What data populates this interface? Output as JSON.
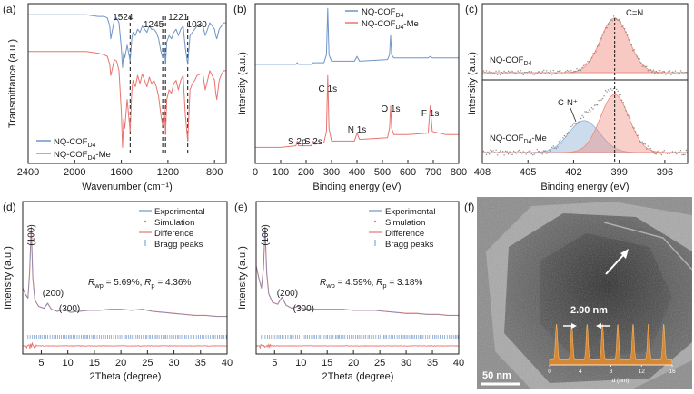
{
  "panels": {
    "a": {
      "label": "(a)",
      "chart_data": {
        "type": "line",
        "xlabel": "Wavenumber (cm⁻¹)",
        "ylabel": "Transmittance (a.u.)",
        "xlim": [
          2400,
          700
        ],
        "x_ticks": [
          "2400",
          "2000",
          "1600",
          "1200",
          "800"
        ],
        "peak_labels": [
          "1524",
          "1245",
          "1221",
          "1030"
        ],
        "peak_positions": [
          1524,
          1245,
          1221,
          1030
        ],
        "legend": [
          {
            "base": "NQ-COF",
            "sub": "D4",
            "suffix": "",
            "color": "#6f95c6"
          },
          {
            "base": "NQ-COF",
            "sub": "D4",
            "suffix": "-Me",
            "color": "#e8746f"
          }
        ],
        "series": [
          {
            "color": "#6f95c6",
            "x": [
              2400,
              2200,
              2000,
              1900,
              1800,
              1750,
              1720,
              1700,
              1690,
              1660,
              1640,
              1620,
              1600,
              1590,
              1580,
              1570,
              1550,
              1524,
              1510,
              1500,
              1480,
              1460,
              1440,
              1420,
              1400,
              1380,
              1360,
              1340,
              1320,
              1300,
              1280,
              1260,
              1245,
              1230,
              1221,
              1210,
              1190,
              1170,
              1150,
              1130,
              1110,
              1090,
              1070,
              1050,
              1030,
              1010,
              990,
              970,
              950,
              920,
              900,
              880,
              860,
              840,
              820,
              800,
              790,
              780,
              760,
              740,
              720,
              700
            ],
            "y": [
              0.93,
              0.93,
              0.93,
              0.93,
              0.92,
              0.92,
              0.91,
              0.86,
              0.78,
              0.9,
              0.91,
              0.88,
              0.72,
              0.6,
              0.7,
              0.66,
              0.74,
              0.64,
              0.78,
              0.82,
              0.8,
              0.84,
              0.82,
              0.86,
              0.84,
              0.82,
              0.86,
              0.84,
              0.84,
              0.82,
              0.78,
              0.7,
              0.66,
              0.72,
              0.62,
              0.76,
              0.8,
              0.78,
              0.82,
              0.84,
              0.8,
              0.84,
              0.86,
              0.72,
              0.62,
              0.8,
              0.82,
              0.84,
              0.86,
              0.86,
              0.86,
              0.8,
              0.84,
              0.88,
              0.86,
              0.84,
              0.8,
              0.78,
              0.84,
              0.86,
              0.88,
              0.88
            ]
          },
          {
            "color": "#e8746f",
            "x": [
              2400,
              2200,
              2000,
              1900,
              1800,
              1750,
              1720,
              1700,
              1690,
              1660,
              1640,
              1620,
              1600,
              1590,
              1580,
              1570,
              1550,
              1524,
              1510,
              1500,
              1480,
              1460,
              1440,
              1420,
              1400,
              1380,
              1360,
              1340,
              1320,
              1300,
              1280,
              1260,
              1245,
              1230,
              1221,
              1210,
              1190,
              1170,
              1150,
              1130,
              1110,
              1090,
              1070,
              1050,
              1030,
              1010,
              990,
              970,
              950,
              920,
              900,
              880,
              860,
              840,
              820,
              800,
              790,
              780,
              760,
              740,
              720,
              700
            ],
            "y": [
              0.7,
              0.7,
              0.7,
              0.7,
              0.69,
              0.68,
              0.67,
              0.62,
              0.55,
              0.65,
              0.64,
              0.58,
              0.32,
              0.1,
              0.28,
              0.22,
              0.4,
              0.2,
              0.45,
              0.52,
              0.48,
              0.55,
              0.5,
              0.56,
              0.52,
              0.48,
              0.54,
              0.5,
              0.52,
              0.48,
              0.42,
              0.3,
              0.24,
              0.34,
              0.18,
              0.4,
              0.46,
              0.44,
              0.5,
              0.52,
              0.46,
              0.52,
              0.55,
              0.3,
              0.14,
              0.46,
              0.5,
              0.52,
              0.55,
              0.56,
              0.56,
              0.46,
              0.52,
              0.58,
              0.55,
              0.52,
              0.44,
              0.4,
              0.52,
              0.56,
              0.58,
              0.58
            ]
          }
        ]
      }
    },
    "b": {
      "label": "(b)",
      "chart_data": {
        "type": "line",
        "xlabel": "Binding energy (eV)",
        "ylabel": "Intensity (a.u.)",
        "xlim": [
          0,
          800
        ],
        "x_ticks": [
          "0",
          "100",
          "200",
          "300",
          "400",
          "500",
          "600",
          "700",
          "800"
        ],
        "legend": [
          {
            "base": "NQ-COF",
            "sub": "D4",
            "suffix": "",
            "color": "#6f95c6"
          },
          {
            "base": "NQ-COF",
            "sub": "D4",
            "suffix": "-Me",
            "color": "#e8746f"
          }
        ],
        "peak_labels": [
          {
            "text": "S 2p",
            "x": 165
          },
          {
            "text": "S 2s",
            "x": 228
          },
          {
            "text": "C 1s",
            "x": 285
          },
          {
            "text": "N 1s",
            "x": 400
          },
          {
            "text": "O 1s",
            "x": 532
          },
          {
            "text": "F 1s",
            "x": 688
          }
        ],
        "series": [
          {
            "color": "#6f95c6",
            "x": [
              0,
              100,
              160,
              165,
              170,
              220,
              228,
              235,
              270,
              280,
              285,
              290,
              300,
              390,
              400,
              410,
              520,
              528,
              532,
              536,
              545,
              600,
              680,
              688,
              696,
              750,
              800
            ],
            "y": [
              0.62,
              0.62,
              0.62,
              0.63,
              0.62,
              0.62,
              0.63,
              0.63,
              0.63,
              0.68,
              0.97,
              0.68,
              0.64,
              0.64,
              0.67,
              0.64,
              0.65,
              0.68,
              0.8,
              0.68,
              0.66,
              0.66,
              0.66,
              0.67,
              0.66,
              0.66,
              0.66
            ]
          },
          {
            "color": "#e8746f",
            "x": [
              0,
              100,
              160,
              165,
              170,
              220,
              228,
              235,
              270,
              280,
              285,
              290,
              300,
              390,
              400,
              410,
              520,
              528,
              532,
              536,
              545,
              600,
              680,
              688,
              696,
              750,
              800
            ],
            "y": [
              0.1,
              0.1,
              0.11,
              0.14,
              0.11,
              0.11,
              0.14,
              0.12,
              0.13,
              0.2,
              0.55,
              0.22,
              0.14,
              0.14,
              0.19,
              0.15,
              0.16,
              0.22,
              0.36,
              0.22,
              0.18,
              0.18,
              0.19,
              0.36,
              0.2,
              0.18,
              0.18
            ]
          }
        ]
      }
    },
    "c": {
      "label": "(c)",
      "chart_data": {
        "type": "line",
        "xlabel": "Binding energy (eV)",
        "ylabel": "Intensity (a.u.)",
        "xlim": [
          408,
          394.5
        ],
        "x_ticks": [
          "408",
          "405",
          "402",
          "399",
          "396"
        ],
        "peak_position": 399.3,
        "upper": {
          "base": "NQ-COF",
          "sub": "D4",
          "suffix": "",
          "peak_label": "C=N"
        },
        "lower": {
          "base": "NQ-COF",
          "sub": "D4",
          "suffix": "-Me",
          "peak_label": "C-N⁺"
        },
        "components": [
          {
            "name": "C=N",
            "center": 399.3,
            "fwhm": 2.2,
            "color": "#f08878"
          },
          {
            "name": "C-N+",
            "center": 401.3,
            "fwhm": 2.4,
            "color": "#8fb2d8"
          }
        ]
      }
    },
    "d": {
      "label": "(d)",
      "chart_data": {
        "type": "line",
        "xlabel": "2Theta (degree)",
        "ylabel": "Intensity (a.u.)",
        "xlim": [
          1.5,
          40
        ],
        "x_ticks": [
          "5",
          "10",
          "15",
          "20",
          "25",
          "30",
          "35",
          "40"
        ],
        "legend": [
          "Experimental",
          "Simulation",
          "Difference",
          "Bragg peaks"
        ],
        "annotation": {
          "r1": "R",
          "r1sub": "wp",
          "r1val": " = 5.69%, ",
          "r2": "R",
          "r2sub": "p",
          "r2val": " = 4.36%"
        },
        "peak_labels": [
          {
            "text": "(100)",
            "x": 3.1
          },
          {
            "text": "(200)",
            "x": 6.2
          },
          {
            "text": "(300)",
            "x": 9.3
          }
        ],
        "series": [
          {
            "color": "#e8746f",
            "x": [
              1.5,
              2.0,
              2.5,
              2.8,
              3.1,
              3.4,
              3.8,
              4.5,
              5.5,
              6.2,
              6.9,
              8.0,
              9.3,
              10.5,
              12,
              14,
              16,
              18,
              20,
              22,
              24,
              26,
              28,
              30,
              32,
              34,
              36,
              38,
              40
            ],
            "y": [
              0.4,
              0.34,
              0.3,
              0.55,
              1.0,
              0.5,
              0.28,
              0.22,
              0.2,
              0.25,
              0.19,
              0.17,
              0.19,
              0.16,
              0.17,
              0.18,
              0.18,
              0.19,
              0.19,
              0.18,
              0.19,
              0.17,
              0.16,
              0.15,
              0.14,
              0.13,
              0.13,
              0.12,
              0.12
            ]
          }
        ]
      }
    },
    "e": {
      "label": "(e)",
      "chart_data": {
        "type": "line",
        "xlabel": "2Theta (degree)",
        "ylabel": "Intensity (a.u.)",
        "xlim": [
          1.5,
          40
        ],
        "x_ticks": [
          "5",
          "10",
          "15",
          "20",
          "25",
          "30",
          "35",
          "40"
        ],
        "legend": [
          "Experimental",
          "Simulation",
          "Difference",
          "Bragg peaks"
        ],
        "annotation": {
          "r1": "R",
          "r1sub": "wp",
          "r1val": " = 4.59%, ",
          "r2": "R",
          "r2sub": "p",
          "r2val": " = 3.18%"
        },
        "peak_labels": [
          {
            "text": "(100)",
            "x": 3.2
          },
          {
            "text": "(200)",
            "x": 6.4
          },
          {
            "text": "(300)",
            "x": 9.5
          }
        ],
        "series": [
          {
            "color": "#e8746f",
            "x": [
              1.5,
              2.0,
              2.5,
              2.9,
              3.2,
              3.5,
              3.9,
              4.6,
              5.6,
              6.4,
              7.2,
              8.3,
              9.5,
              10.8,
              12,
              14,
              16,
              18,
              20,
              22,
              24,
              26,
              28,
              30,
              32,
              34,
              36,
              38,
              40
            ],
            "y": [
              0.62,
              0.5,
              0.4,
              0.6,
              1.0,
              0.55,
              0.34,
              0.26,
              0.24,
              0.31,
              0.23,
              0.2,
              0.22,
              0.19,
              0.19,
              0.19,
              0.19,
              0.19,
              0.18,
              0.18,
              0.18,
              0.17,
              0.16,
              0.15,
              0.15,
              0.14,
              0.14,
              0.13,
              0.13
            ]
          }
        ]
      }
    },
    "f": {
      "label": "(f)",
      "scale_bar": "50 nm",
      "spacing_label": "2.00 nm",
      "profile_xlabel": "d (nm)",
      "profile_ticks": [
        "0",
        "4",
        "8",
        "12",
        "16"
      ],
      "profile_fill": "#e08a2e"
    }
  }
}
